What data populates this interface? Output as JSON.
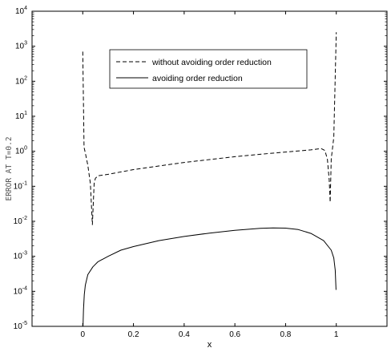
{
  "chart_data": {
    "type": "line",
    "title": "",
    "xlabel": "x",
    "ylabel": "ERROR AT T=0.2",
    "xlim": [
      -0.2,
      1.2
    ],
    "ylim": [
      1e-05,
      10000
    ],
    "yscale": "log",
    "grid": false,
    "legend_position": "top-center",
    "x_ticks": [
      0,
      0.2,
      0.4,
      0.6,
      0.8,
      1
    ],
    "x_tick_labels": [
      "0",
      "0.2",
      "0.4",
      "0.6",
      "0.8",
      "1"
    ],
    "y_ticks": [
      {
        "value": 1e-05,
        "base": "10",
        "exp": "-5"
      },
      {
        "value": 0.0001,
        "base": "10",
        "exp": "-4"
      },
      {
        "value": 0.001,
        "base": "10",
        "exp": "-3"
      },
      {
        "value": 0.01,
        "base": "10",
        "exp": "-2"
      },
      {
        "value": 0.1,
        "base": "10",
        "exp": "-1"
      },
      {
        "value": 1,
        "base": "10",
        "exp": "0"
      },
      {
        "value": 10,
        "base": "10",
        "exp": "1"
      },
      {
        "value": 100,
        "base": "10",
        "exp": "2"
      },
      {
        "value": 1000,
        "base": "10",
        "exp": "3"
      },
      {
        "value": 10000,
        "base": "10",
        "exp": "4"
      }
    ],
    "series": [
      {
        "name": "without avoiding order reduction",
        "style": "dashed",
        "color": "#000000",
        "x": [
          0.0,
          0.005,
          0.01,
          0.02,
          0.03,
          0.038,
          0.045,
          0.05,
          0.06,
          0.1,
          0.2,
          0.3,
          0.4,
          0.5,
          0.6,
          0.7,
          0.8,
          0.9,
          0.94,
          0.955,
          0.965,
          0.972,
          0.976,
          0.98,
          0.99,
          1.0
        ],
        "y": [
          700,
          1.3,
          0.9,
          0.4,
          0.12,
          0.008,
          0.12,
          0.17,
          0.2,
          0.22,
          0.3,
          0.38,
          0.48,
          0.58,
          0.7,
          0.82,
          0.95,
          1.1,
          1.2,
          1.05,
          0.6,
          0.15,
          0.035,
          0.6,
          2.5,
          2500
        ]
      },
      {
        "name": "avoiding order reduction",
        "style": "solid",
        "color": "#000000",
        "x": [
          0.001,
          0.003,
          0.006,
          0.01,
          0.02,
          0.04,
          0.06,
          0.1,
          0.15,
          0.2,
          0.3,
          0.4,
          0.5,
          0.6,
          0.7,
          0.75,
          0.8,
          0.85,
          0.9,
          0.95,
          0.98,
          0.99,
          0.996,
          0.999
        ],
        "y": [
          1e-05,
          3e-05,
          8e-05,
          0.00015,
          0.0003,
          0.0005,
          0.0007,
          0.001,
          0.0015,
          0.0019,
          0.0028,
          0.0037,
          0.0046,
          0.0055,
          0.0063,
          0.0065,
          0.0064,
          0.0058,
          0.0045,
          0.0028,
          0.0015,
          0.0009,
          0.0004,
          0.00011
        ]
      }
    ]
  }
}
